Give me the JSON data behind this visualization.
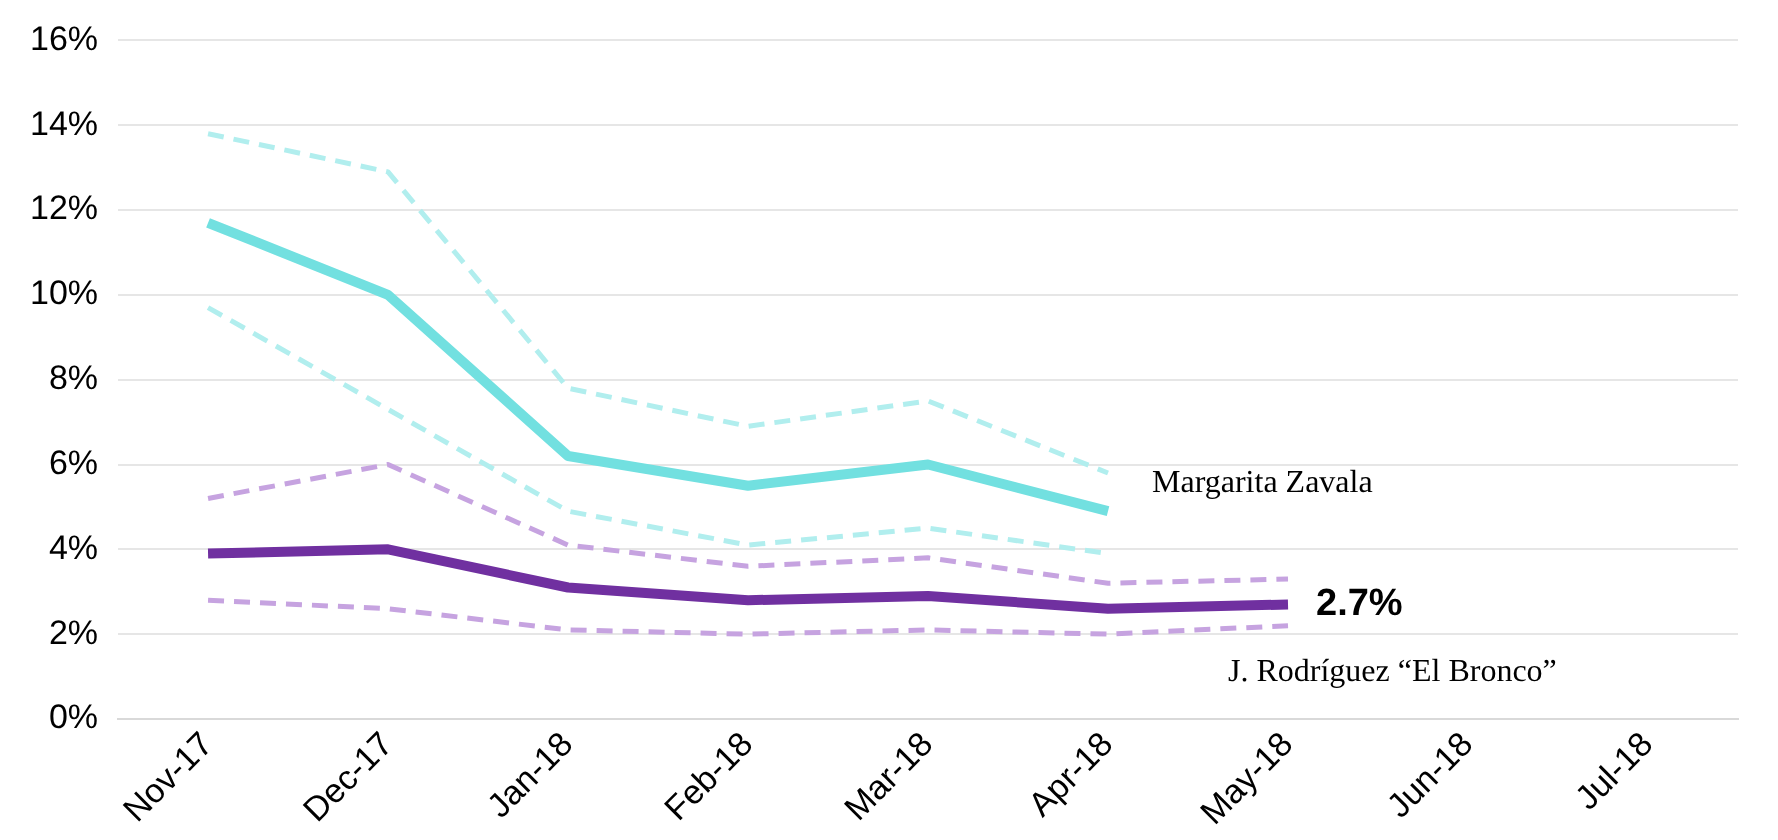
{
  "chart_data": {
    "type": "line",
    "categories": [
      "Nov-17",
      "Dec-17",
      "Jan-18",
      "Feb-18",
      "Mar-18",
      "Apr-18",
      "May-18",
      "Jun-18",
      "Jul-18"
    ],
    "ylim": [
      0,
      16
    ],
    "yticks": [
      {
        "value": 0,
        "label": "0%"
      },
      {
        "value": 2,
        "label": "2%"
      },
      {
        "value": 4,
        "label": "4%"
      },
      {
        "value": 6,
        "label": "6%"
      },
      {
        "value": 8,
        "label": "8%"
      },
      {
        "value": 10,
        "label": "10%"
      },
      {
        "value": 12,
        "label": "12%"
      },
      {
        "value": 14,
        "label": "14%"
      },
      {
        "value": 16,
        "label": "16%"
      }
    ],
    "grid": "y",
    "legend": false,
    "marker": "none",
    "series": [
      {
        "color": "#b1eeee",
        "line_style": "dashed",
        "values": [
          13.8,
          12.9,
          7.8,
          6.9,
          7.5,
          5.8,
          null,
          null,
          null
        ]
      },
      {
        "color": "#b1eeee",
        "line_style": "dashed",
        "values": [
          9.7,
          7.3,
          4.9,
          4.1,
          4.5,
          3.9,
          null,
          null,
          null
        ]
      },
      {
        "color": "#c6a3e0",
        "line_style": "dashed",
        "values": [
          5.2,
          6.0,
          4.1,
          3.6,
          3.8,
          3.2,
          3.3,
          null,
          null
        ]
      },
      {
        "color": "#c6a3e0",
        "line_style": "dashed",
        "values": [
          2.8,
          2.6,
          2.1,
          2.0,
          2.1,
          2.0,
          2.2,
          null,
          null
        ]
      },
      {
        "name": "Margarita Zavala",
        "color": "#72e0e0",
        "line_style": "solid",
        "values": [
          11.7,
          10.0,
          6.2,
          5.5,
          6.0,
          4.9,
          null,
          null,
          null
        ]
      },
      {
        "name": "J. Rodríguez “El Bronco”",
        "color": "#7030a0",
        "line_style": "solid",
        "values": [
          3.9,
          4.0,
          3.1,
          2.8,
          2.9,
          2.6,
          2.7,
          null,
          null
        ],
        "value_labels": [
          null,
          null,
          null,
          null,
          null,
          null,
          "2.7%",
          null,
          null
        ]
      }
    ]
  }
}
